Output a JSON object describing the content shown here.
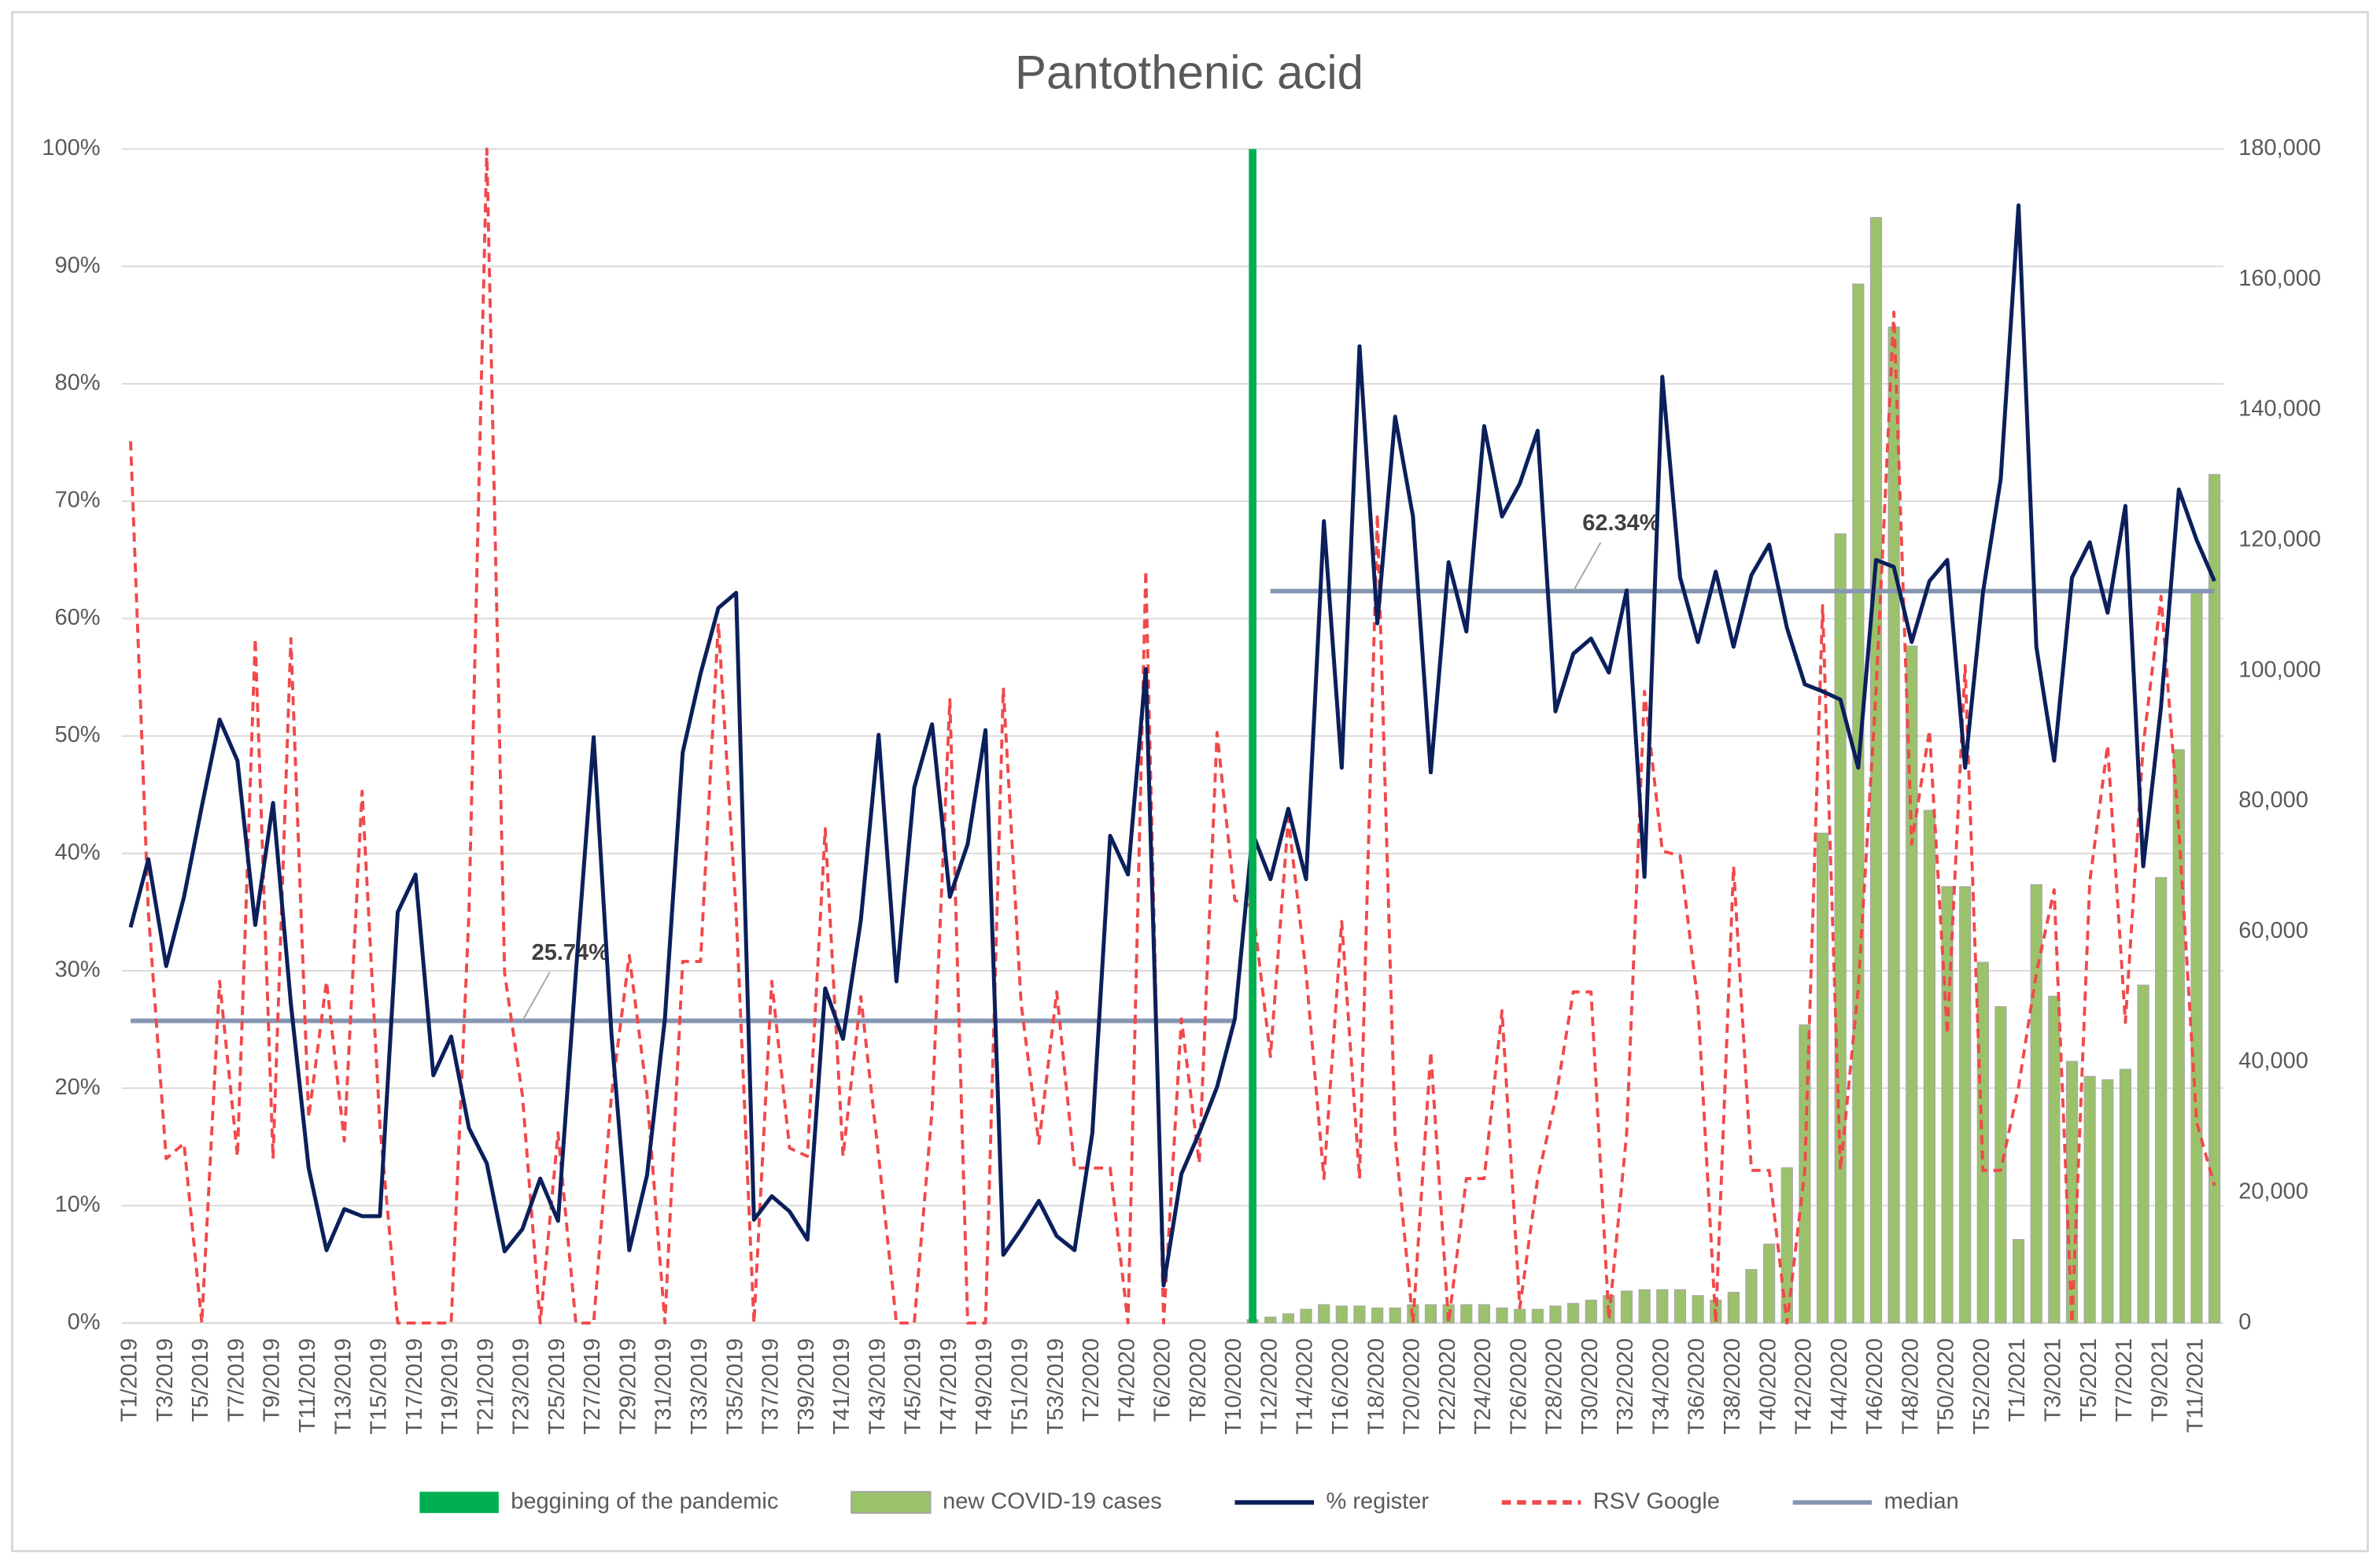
{
  "chart_data": {
    "type": "combo",
    "title": "Pantothenic acid",
    "categories": [
      "T1/2019",
      null,
      "T3/2019",
      null,
      "T5/2019",
      null,
      "T7/2019",
      null,
      "T9/2019",
      null,
      "T11/2019",
      null,
      "T13/2019",
      null,
      "T15/2019",
      null,
      "T17/2019",
      null,
      "T19/2019",
      null,
      "T21/2019",
      null,
      "T23/2019",
      null,
      "T25/2019",
      null,
      "T27/2019",
      null,
      "T29/2019",
      null,
      "T31/2019",
      null,
      "T33/2019",
      null,
      "T35/2019",
      null,
      "T37/2019",
      null,
      "T39/2019",
      null,
      "T41/2019",
      null,
      "T43/2019",
      null,
      "T45/2019",
      null,
      "T47/2019",
      null,
      "T49/2019",
      null,
      "T51/2019",
      null,
      "T53/2019",
      null,
      "T2/2020",
      null,
      "T4/2020",
      null,
      "T6/2020",
      null,
      "T8/2020",
      null,
      "T10/2020",
      null,
      "T12/2020",
      null,
      "T14/2020",
      null,
      "T16/2020",
      null,
      "T18/2020",
      null,
      "T20/2020",
      null,
      "T22/2020",
      null,
      "T24/2020",
      null,
      "T26/2020",
      null,
      "T28/2020",
      null,
      "T30/2020",
      null,
      "T32/2020",
      null,
      "T34/2020",
      null,
      "T36/2020",
      null,
      "T38/2020",
      null,
      "T40/2020",
      null,
      "T42/2020",
      null,
      "T44/2020",
      null,
      "T46/2020",
      null,
      "T48/2020",
      null,
      "T50/2020",
      null,
      "T52/2020",
      null,
      "T1/2021",
      null,
      "T3/2021",
      null,
      "T5/2021",
      null,
      "T7/2021",
      null,
      "T9/2021",
      null,
      "T11/2021",
      null
    ],
    "ylim": [
      0,
      100
    ],
    "yticks": [
      {
        "value": 0,
        "label": "0%"
      },
      {
        "value": 10,
        "label": "10%"
      },
      {
        "value": 20,
        "label": "20%"
      },
      {
        "value": 30,
        "label": "30%"
      },
      {
        "value": 40,
        "label": "40%"
      },
      {
        "value": 50,
        "label": "50%"
      },
      {
        "value": 60,
        "label": "60%"
      },
      {
        "value": 70,
        "label": "70%"
      },
      {
        "value": 80,
        "label": "80%"
      },
      {
        "value": 90,
        "label": "90%"
      },
      {
        "value": 100,
        "label": "100%"
      }
    ],
    "y2lim": [
      0,
      180000
    ],
    "y2ticks": [
      0,
      {
        "value": 20000,
        "label": "20,000"
      },
      {
        "value": 40000,
        "label": "40,000"
      },
      {
        "value": 60000,
        "label": "60,000"
      },
      {
        "value": 80000,
        "label": "80,000"
      },
      {
        "value": 100000,
        "label": "100,000"
      },
      {
        "value": 120000,
        "label": "120,000"
      },
      {
        "value": 140000,
        "label": "140,000"
      },
      {
        "value": 160000,
        "label": "160,000"
      },
      {
        "value": 180000,
        "label": "180,000"
      }
    ],
    "grid": true,
    "legend": "bottom",
    "series": [
      {
        "name": "beggining of the pandemic",
        "type": "bar",
        "color": "#00b050",
        "values": [
          null,
          null,
          null,
          null,
          null,
          null,
          null,
          null,
          null,
          null,
          null,
          null,
          null,
          null,
          null,
          null,
          null,
          null,
          null,
          null,
          null,
          null,
          null,
          null,
          null,
          null,
          null,
          null,
          null,
          null,
          null,
          null,
          null,
          null,
          null,
          null,
          null,
          null,
          null,
          null,
          null,
          null,
          null,
          null,
          null,
          null,
          null,
          null,
          null,
          null,
          null,
          null,
          null,
          null,
          null,
          null,
          null,
          null,
          null,
          null,
          null,
          null,
          null,
          100,
          null,
          null,
          null,
          null,
          null,
          null,
          null,
          null,
          null,
          null,
          null,
          null,
          null,
          null,
          null,
          null,
          null,
          null,
          null,
          null,
          null,
          null,
          null,
          null,
          null,
          null,
          null,
          null,
          null,
          null,
          null,
          null,
          null,
          null,
          null,
          null,
          null,
          null,
          null,
          null,
          null,
          null,
          null,
          null,
          null,
          null,
          null,
          null,
          null,
          null,
          null,
          null,
          null,
          null
        ]
      },
      {
        "name": "new COVID-19 cases",
        "type": "bar",
        "axis": "y2",
        "color": "#9bc26b",
        "edgecolor": "#a6a6a6",
        "values": [
          null,
          null,
          null,
          null,
          null,
          null,
          null,
          null,
          null,
          null,
          null,
          null,
          null,
          null,
          null,
          null,
          null,
          null,
          null,
          null,
          null,
          null,
          null,
          null,
          null,
          null,
          null,
          null,
          null,
          null,
          null,
          null,
          null,
          null,
          null,
          null,
          null,
          null,
          null,
          null,
          null,
          null,
          null,
          null,
          null,
          null,
          null,
          null,
          null,
          null,
          null,
          null,
          null,
          null,
          null,
          null,
          null,
          null,
          null,
          null,
          null,
          null,
          0,
          500,
          900,
          1400,
          2100,
          2800,
          2600,
          2600,
          2300,
          2300,
          2800,
          2800,
          2800,
          2800,
          2800,
          2300,
          2100,
          2100,
          2600,
          3000,
          3500,
          4200,
          4900,
          5100,
          5100,
          5100,
          4200,
          3500,
          4700,
          8200,
          12100,
          23800,
          45700,
          75100,
          121000,
          159300,
          169500,
          152700,
          103800,
          78600,
          66900,
          66900,
          55300,
          48500,
          12800,
          67200,
          50100,
          40100,
          37800,
          37300,
          38900,
          51800,
          68300,
          87900,
          111900,
          130100
        ]
      },
      {
        "name": "% register",
        "type": "line",
        "color": "#0b1f5b",
        "values": [
          33.7,
          39.5,
          30.4,
          36.3,
          44,
          51.4,
          47.9,
          33.9,
          44.3,
          27.2,
          13.2,
          6.2,
          9.7,
          9.1,
          9.1,
          35,
          38.2,
          21.1,
          24.4,
          16.6,
          13.6,
          6.1,
          8,
          12.3,
          8.7,
          29.8,
          49.9,
          24.6,
          6.2,
          12.6,
          25.9,
          48.6,
          55.3,
          60.9,
          62.2,
          8.8,
          10.8,
          9.5,
          7.1,
          28.5,
          24.2,
          34.3,
          50.1,
          29.1,
          45.6,
          51,
          36.3,
          40.8,
          50.5,
          5.8,
          8,
          10.4,
          7.4,
          6.2,
          16.2,
          41.5,
          38.2,
          55.7,
          3.2,
          12.7,
          16.2,
          20.1,
          25.9,
          41.7,
          37.8,
          43.8,
          37.8,
          68.3,
          47.3,
          83.2,
          59.6,
          77.2,
          68.7,
          46.9,
          64.8,
          58.9,
          76.4,
          68.7,
          71.5,
          76,
          52.1,
          57,
          58.3,
          55.4,
          62.4,
          38,
          80.6,
          63.5,
          58,
          64,
          57.6,
          63.7,
          66.3,
          59.2,
          54.4,
          53.8,
          53.1,
          47.3,
          65,
          64.4,
          58,
          63.2,
          65,
          47.3,
          62.2,
          71.9,
          95.2,
          57.6,
          47.9,
          63.5,
          66.5,
          60.5,
          69.6,
          38.9,
          52.5,
          71,
          66.7,
          63.2
        ]
      },
      {
        "name": "RSV Google",
        "type": "line",
        "color": "#f0494b",
        "dashed": true,
        "values": [
          75.1,
          35,
          14,
          15.3,
          0,
          29.1,
          14.2,
          58.3,
          14,
          58.3,
          17.5,
          29.1,
          15.5,
          45.3,
          16.8,
          0,
          0,
          0,
          0,
          35,
          100,
          29.8,
          19.4,
          0,
          16.2,
          0,
          0,
          19.4,
          31.3,
          19.4,
          0,
          30.8,
          30.8,
          59.6,
          35,
          0,
          29.1,
          14.9,
          14.2,
          42.1,
          14.2,
          27.8,
          14.2,
          0,
          0,
          18.1,
          53.1,
          0,
          0,
          54.1,
          27.2,
          15.3,
          28.2,
          13.2,
          13.2,
          13.2,
          0,
          64.1,
          0,
          25.9,
          13.6,
          50.3,
          36,
          35.5,
          22.7,
          43,
          29.8,
          12.3,
          34.2,
          12.3,
          68.9,
          15.8,
          0,
          23.1,
          0,
          12.3,
          12.3,
          26.6,
          1.3,
          12.3,
          19,
          28.2,
          28.2,
          0.3,
          16.2,
          53.8,
          40.2,
          39.8,
          27.2,
          0,
          38.9,
          13,
          13,
          0,
          13,
          61.1,
          13,
          28.5,
          53.8,
          86.1,
          40.8,
          50.5,
          24.6,
          56,
          13,
          13,
          20.1,
          29.8,
          36.9,
          0,
          37.6,
          49.2,
          25.6,
          49.2,
          61.9,
          42.1,
          17.1,
          11.7
        ]
      },
      {
        "name": "median",
        "type": "line",
        "color": "#8596b1",
        "values": [
          25.74,
          25.74,
          25.74,
          25.74,
          25.74,
          25.74,
          25.74,
          25.74,
          25.74,
          25.74,
          25.74,
          25.74,
          25.74,
          25.74,
          25.74,
          25.74,
          25.74,
          25.74,
          25.74,
          25.74,
          25.74,
          25.74,
          25.74,
          25.74,
          25.74,
          25.74,
          25.74,
          25.74,
          25.74,
          25.74,
          25.74,
          25.74,
          25.74,
          25.74,
          25.74,
          25.74,
          25.74,
          25.74,
          25.74,
          25.74,
          25.74,
          25.74,
          25.74,
          25.74,
          25.74,
          25.74,
          25.74,
          25.74,
          25.74,
          25.74,
          25.74,
          25.74,
          25.74,
          25.74,
          25.74,
          25.74,
          25.74,
          25.74,
          25.74,
          25.74,
          25.74,
          25.74,
          25.74,
          null,
          62.34,
          62.34,
          62.34,
          62.34,
          62.34,
          62.34,
          62.34,
          62.34,
          62.34,
          62.34,
          62.34,
          62.34,
          62.34,
          62.34,
          62.34,
          62.34,
          62.34,
          62.34,
          62.34,
          62.34,
          62.34,
          62.34,
          62.34,
          62.34,
          62.34,
          62.34,
          62.34,
          62.34,
          62.34,
          62.34,
          62.34,
          62.34,
          62.34,
          62.34,
          62.34,
          62.34,
          62.34,
          62.34,
          62.34,
          62.34,
          62.34,
          62.34,
          62.34,
          62.34,
          62.34,
          62.34,
          62.34,
          62.34,
          62.34,
          62.34,
          62.34,
          62.34,
          62.34,
          62.34
        ],
        "value_labels": [
          null,
          null,
          null,
          null,
          null,
          null,
          null,
          null,
          null,
          null,
          null,
          null,
          null,
          null,
          null,
          null,
          null,
          null,
          null,
          null,
          null,
          null,
          "25.74%",
          null,
          null,
          null,
          null,
          null,
          null,
          null,
          null,
          null,
          null,
          null,
          null,
          null,
          null,
          null,
          null,
          null,
          null,
          null,
          null,
          null,
          null,
          null,
          null,
          null,
          null,
          null,
          null,
          null,
          null,
          null,
          null,
          null,
          null,
          null,
          null,
          null,
          null,
          null,
          null,
          null,
          null,
          null,
          null,
          null,
          null,
          null,
          null,
          null,
          null,
          null,
          null,
          null,
          null,
          null,
          null,
          null,
          null,
          "62.34%",
          null,
          null,
          null,
          null,
          null,
          null,
          null,
          null,
          null,
          null,
          null,
          null,
          null,
          null,
          null,
          null,
          null,
          null,
          null,
          null,
          null,
          null,
          null,
          null,
          null,
          null,
          null,
          null,
          null,
          null,
          null,
          null,
          null,
          null,
          null,
          null
        ]
      }
    ]
  }
}
